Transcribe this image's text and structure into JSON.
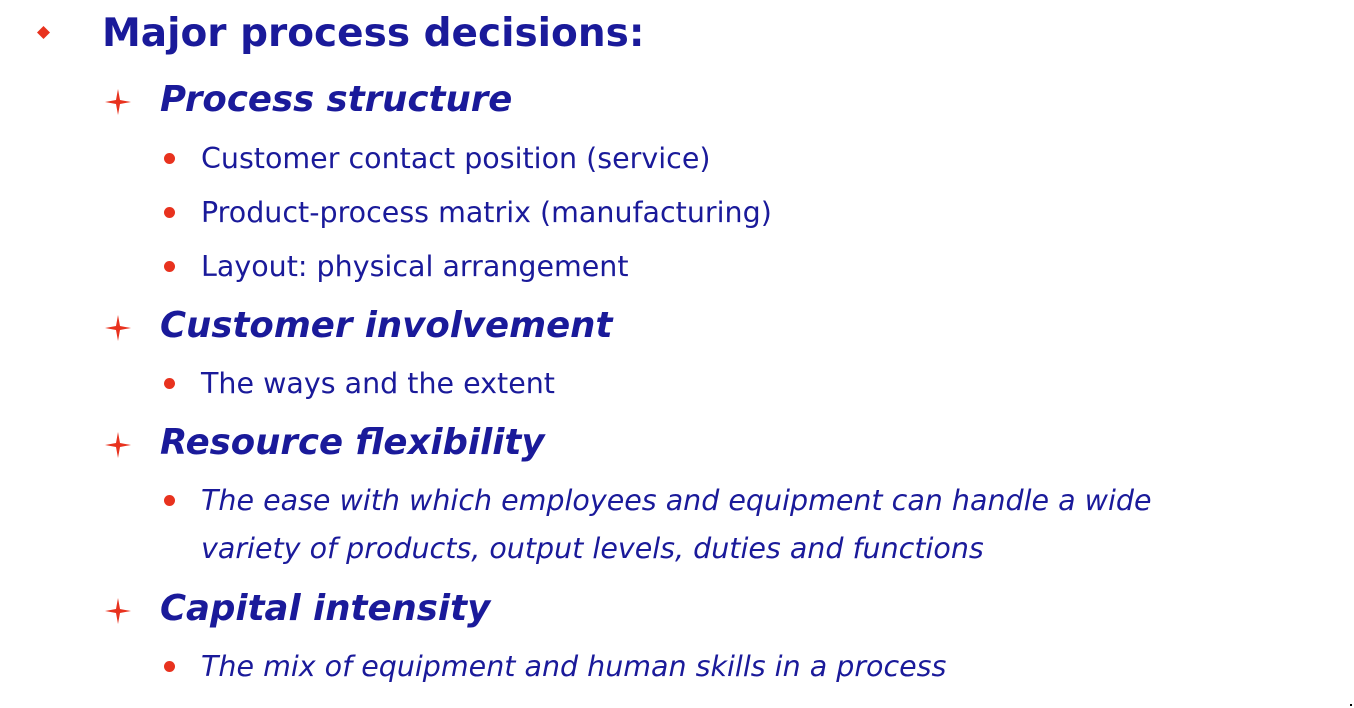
{
  "slide": {
    "colors": {
      "text": "#1a1a9a",
      "bullet": "#e8321e"
    },
    "heading": {
      "bullet_icon": "diamond-bullet-icon",
      "text": "Major process decisions:"
    },
    "sections": [
      {
        "bullet_icon": "four-point-star-bullet-icon",
        "title": "Process structure",
        "items": [
          {
            "text": "Customer contact position (service)"
          },
          {
            "text": "Product-process matrix (manufacturing)"
          },
          {
            "text": "Layout: physical arrangement"
          }
        ]
      },
      {
        "bullet_icon": "four-point-star-bullet-icon",
        "title": "Customer involvement",
        "items": [
          {
            "text": "The ways and the extent"
          }
        ]
      },
      {
        "bullet_icon": "four-point-star-bullet-icon",
        "title": "Resource flexibility",
        "items": [
          {
            "line1": "The ease with which employees and equipment can handle a wide",
            "line2": "variety of products, output levels, duties and functions"
          }
        ]
      },
      {
        "bullet_icon": "four-point-star-bullet-icon",
        "title": "Capital intensity",
        "items": [
          {
            "text": "The mix of equipment and human skills in a process"
          }
        ]
      }
    ]
  }
}
